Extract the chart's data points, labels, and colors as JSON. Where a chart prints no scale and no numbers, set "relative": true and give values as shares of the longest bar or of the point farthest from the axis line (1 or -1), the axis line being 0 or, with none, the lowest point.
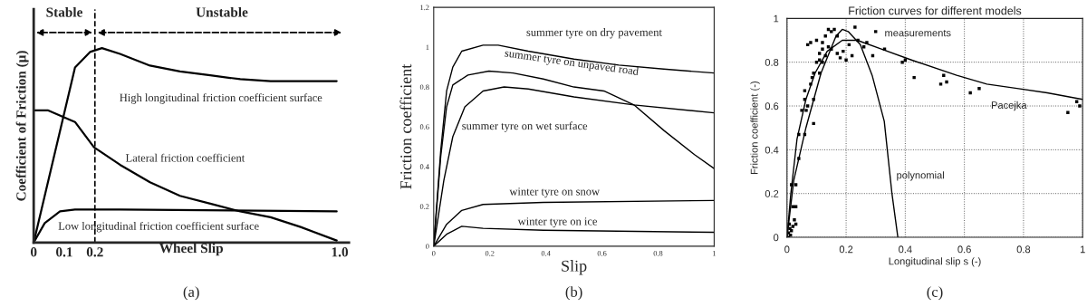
{
  "chart_data": [
    {
      "type": "line",
      "relative": true,
      "xlabel": "Wheel Slip",
      "ylabel": "Coefficient of Friction (μ)",
      "xlim": [
        0,
        1.03
      ],
      "xticks": [
        0,
        0.1,
        0.2,
        {
          "value": 1.0,
          "label": "1.0"
        }
      ],
      "tick_labels": "x",
      "grid": false,
      "legend": false,
      "series": [
        {
          "name": "High longitudinal friction coefficient surface",
          "color": "#000000",
          "x": [
            0,
            0.135,
            0.184,
            0.223,
            0.282,
            0.38,
            0.478,
            0.577,
            0.675,
            0.774,
            0.99
          ],
          "values": [
            0,
            0.9,
            0.98,
            1.0,
            0.97,
            0.91,
            0.88,
            0.86,
            0.84,
            0.83,
            0.83
          ]
        },
        {
          "name": "Lateral friction coefficient",
          "color": "#000000",
          "x": [
            0,
            0.046,
            0.135,
            0.197,
            0.282,
            0.38,
            0.478,
            0.577,
            0.675,
            0.774,
            0.872,
            0.99
          ],
          "values": [
            0.68,
            0.68,
            0.62,
            0.49,
            0.4,
            0.31,
            0.24,
            0.2,
            0.16,
            0.13,
            0.08,
            0.01
          ]
        },
        {
          "name": "Low longitudinal friction coefficient surface",
          "color": "#000000",
          "x": [
            0,
            0.036,
            0.086,
            0.135,
            0.282,
            0.99
          ],
          "values": [
            0,
            0.1,
            0.16,
            0.17,
            0.17,
            0.16
          ]
        }
      ],
      "ref_lines": [
        {
          "axis": "x",
          "value": 0.2,
          "line_style": "dashed"
        }
      ],
      "annotations": [
        "Stable",
        "Unstable",
        "(a)"
      ]
    },
    {
      "type": "line",
      "xlabel": "Slip",
      "ylabel": "Friction coefficient",
      "xlim": [
        0,
        1
      ],
      "xticks": [
        0,
        0.2,
        0.4,
        0.6,
        0.8,
        1
      ],
      "ylim": [
        0,
        1.2
      ],
      "yticks": [
        0,
        0.2,
        0.4,
        0.6,
        0.8,
        1,
        1.2
      ],
      "grid": false,
      "legend": false,
      "series": [
        {
          "name": "summer tyre on dry pavement",
          "color": "#000000",
          "x": [
            0,
            0.025,
            0.046,
            0.068,
            0.1,
            0.176,
            0.23,
            0.337,
            0.5,
            0.66,
            0.82,
            1.0
          ],
          "values": [
            0,
            0.48,
            0.78,
            0.9,
            0.98,
            1.01,
            1.01,
            0.98,
            0.94,
            0.91,
            0.89,
            0.87
          ]
        },
        {
          "name": "summer tyre on unpaved road",
          "color": "#000000",
          "x": [
            0,
            0.025,
            0.046,
            0.068,
            0.122,
            0.197,
            0.283,
            0.391,
            0.5,
            0.607,
            0.714,
            0.822,
            0.93,
            1.0
          ],
          "values": [
            0,
            0.45,
            0.7,
            0.81,
            0.86,
            0.88,
            0.87,
            0.84,
            0.8,
            0.78,
            0.71,
            0.58,
            0.46,
            0.39
          ]
        },
        {
          "name": "summer tyre on wet surface",
          "color": "#000000",
          "x": [
            0,
            0.036,
            0.068,
            0.111,
            0.176,
            0.251,
            0.337,
            0.5,
            0.714,
            1.0
          ],
          "values": [
            0,
            0.33,
            0.55,
            0.7,
            0.78,
            0.8,
            0.79,
            0.75,
            0.71,
            0.67
          ]
        },
        {
          "name": "winter tyre on snow",
          "color": "#000000",
          "x": [
            0,
            0.046,
            0.1,
            0.176,
            0.391,
            1.0
          ],
          "values": [
            0,
            0.11,
            0.18,
            0.21,
            0.22,
            0.23
          ]
        },
        {
          "name": "winter tyre on ice",
          "color": "#000000",
          "x": [
            0,
            0.046,
            0.1,
            0.176,
            0.391,
            1.0
          ],
          "values": [
            0,
            0.06,
            0.1,
            0.09,
            0.08,
            0.07
          ]
        }
      ],
      "annotations": [
        "(b)"
      ]
    },
    {
      "type": "line",
      "title": "Friction curves for different models",
      "xlabel": "Longitudinal slip s (-)",
      "ylabel": "Friction coefficient (-)",
      "xlim": [
        0,
        1
      ],
      "xticks": [
        0,
        0.2,
        0.4,
        0.6,
        0.8,
        1
      ],
      "ylim": [
        0,
        1
      ],
      "yticks": [
        0,
        0.2,
        0.4,
        0.6,
        0.8,
        1
      ],
      "grid": true,
      "legend": false,
      "series": [
        {
          "name": "measurements",
          "type": "scatter",
          "color": "#000000",
          "x": [
            0.005,
            0.01,
            0.015,
            0.008,
            0.012,
            0.02,
            0.005,
            0.025,
            0.03,
            0.02,
            0.03,
            0.015,
            0.03,
            0.04,
            0.04,
            0.06,
            0.05,
            0.065,
            0.07,
            0.06,
            0.06,
            0.09,
            0.08,
            0.085,
            0.09,
            0.1,
            0.11,
            0.12,
            0.11,
            0.13,
            0.12,
            0.14,
            0.07,
            0.08,
            0.1,
            0.12,
            0.13,
            0.14,
            0.15,
            0.16,
            0.17,
            0.15,
            0.17,
            0.18,
            0.19,
            0.2,
            0.22,
            0.21,
            0.23,
            0.24,
            0.26,
            0.27,
            0.29,
            0.3,
            0.33,
            0.39,
            0.4,
            0.43,
            0.52,
            0.53,
            0.54,
            0.62,
            0.65,
            0.95,
            0.98,
            0.99,
            0.11,
            0.09
          ],
          "values": [
            0.02,
            0.04,
            0.03,
            0.06,
            0.01,
            0.05,
            0.0,
            0.08,
            0.06,
            0.14,
            0.14,
            0.24,
            0.24,
            0.36,
            0.47,
            0.47,
            0.58,
            0.58,
            0.6,
            0.63,
            0.67,
            0.63,
            0.7,
            0.73,
            0.75,
            0.8,
            0.81,
            0.8,
            0.84,
            0.83,
            0.86,
            0.87,
            0.88,
            0.89,
            0.9,
            0.89,
            0.92,
            0.95,
            0.94,
            0.95,
            0.92,
            0.86,
            0.84,
            0.82,
            0.85,
            0.81,
            0.83,
            0.88,
            0.96,
            0.9,
            0.87,
            0.89,
            0.83,
            0.94,
            0.86,
            0.8,
            0.81,
            0.73,
            0.7,
            0.74,
            0.71,
            0.66,
            0.68,
            0.57,
            0.62,
            0.6,
            0.75,
            0.52
          ]
        },
        {
          "name": "Pacejka",
          "color": "#000000",
          "x": [
            0,
            0.013,
            0.034,
            0.064,
            0.095,
            0.136,
            0.187,
            0.238,
            0.319,
            0.421,
            0.574,
            0.676,
            0.778,
            0.88,
            1.0
          ],
          "values": [
            0,
            0.2,
            0.45,
            0.63,
            0.75,
            0.85,
            0.9,
            0.9,
            0.86,
            0.81,
            0.74,
            0.7,
            0.68,
            0.66,
            0.63
          ]
        },
        {
          "name": "polynomial",
          "color": "#000000",
          "x": [
            0,
            0.023,
            0.064,
            0.115,
            0.166,
            0.187,
            0.207,
            0.248,
            0.288,
            0.329,
            0.355,
            0.375
          ],
          "values": [
            0,
            0.26,
            0.5,
            0.75,
            0.92,
            0.95,
            0.94,
            0.88,
            0.74,
            0.53,
            0.2,
            0
          ]
        }
      ],
      "annotations": [
        "(c)"
      ]
    }
  ]
}
